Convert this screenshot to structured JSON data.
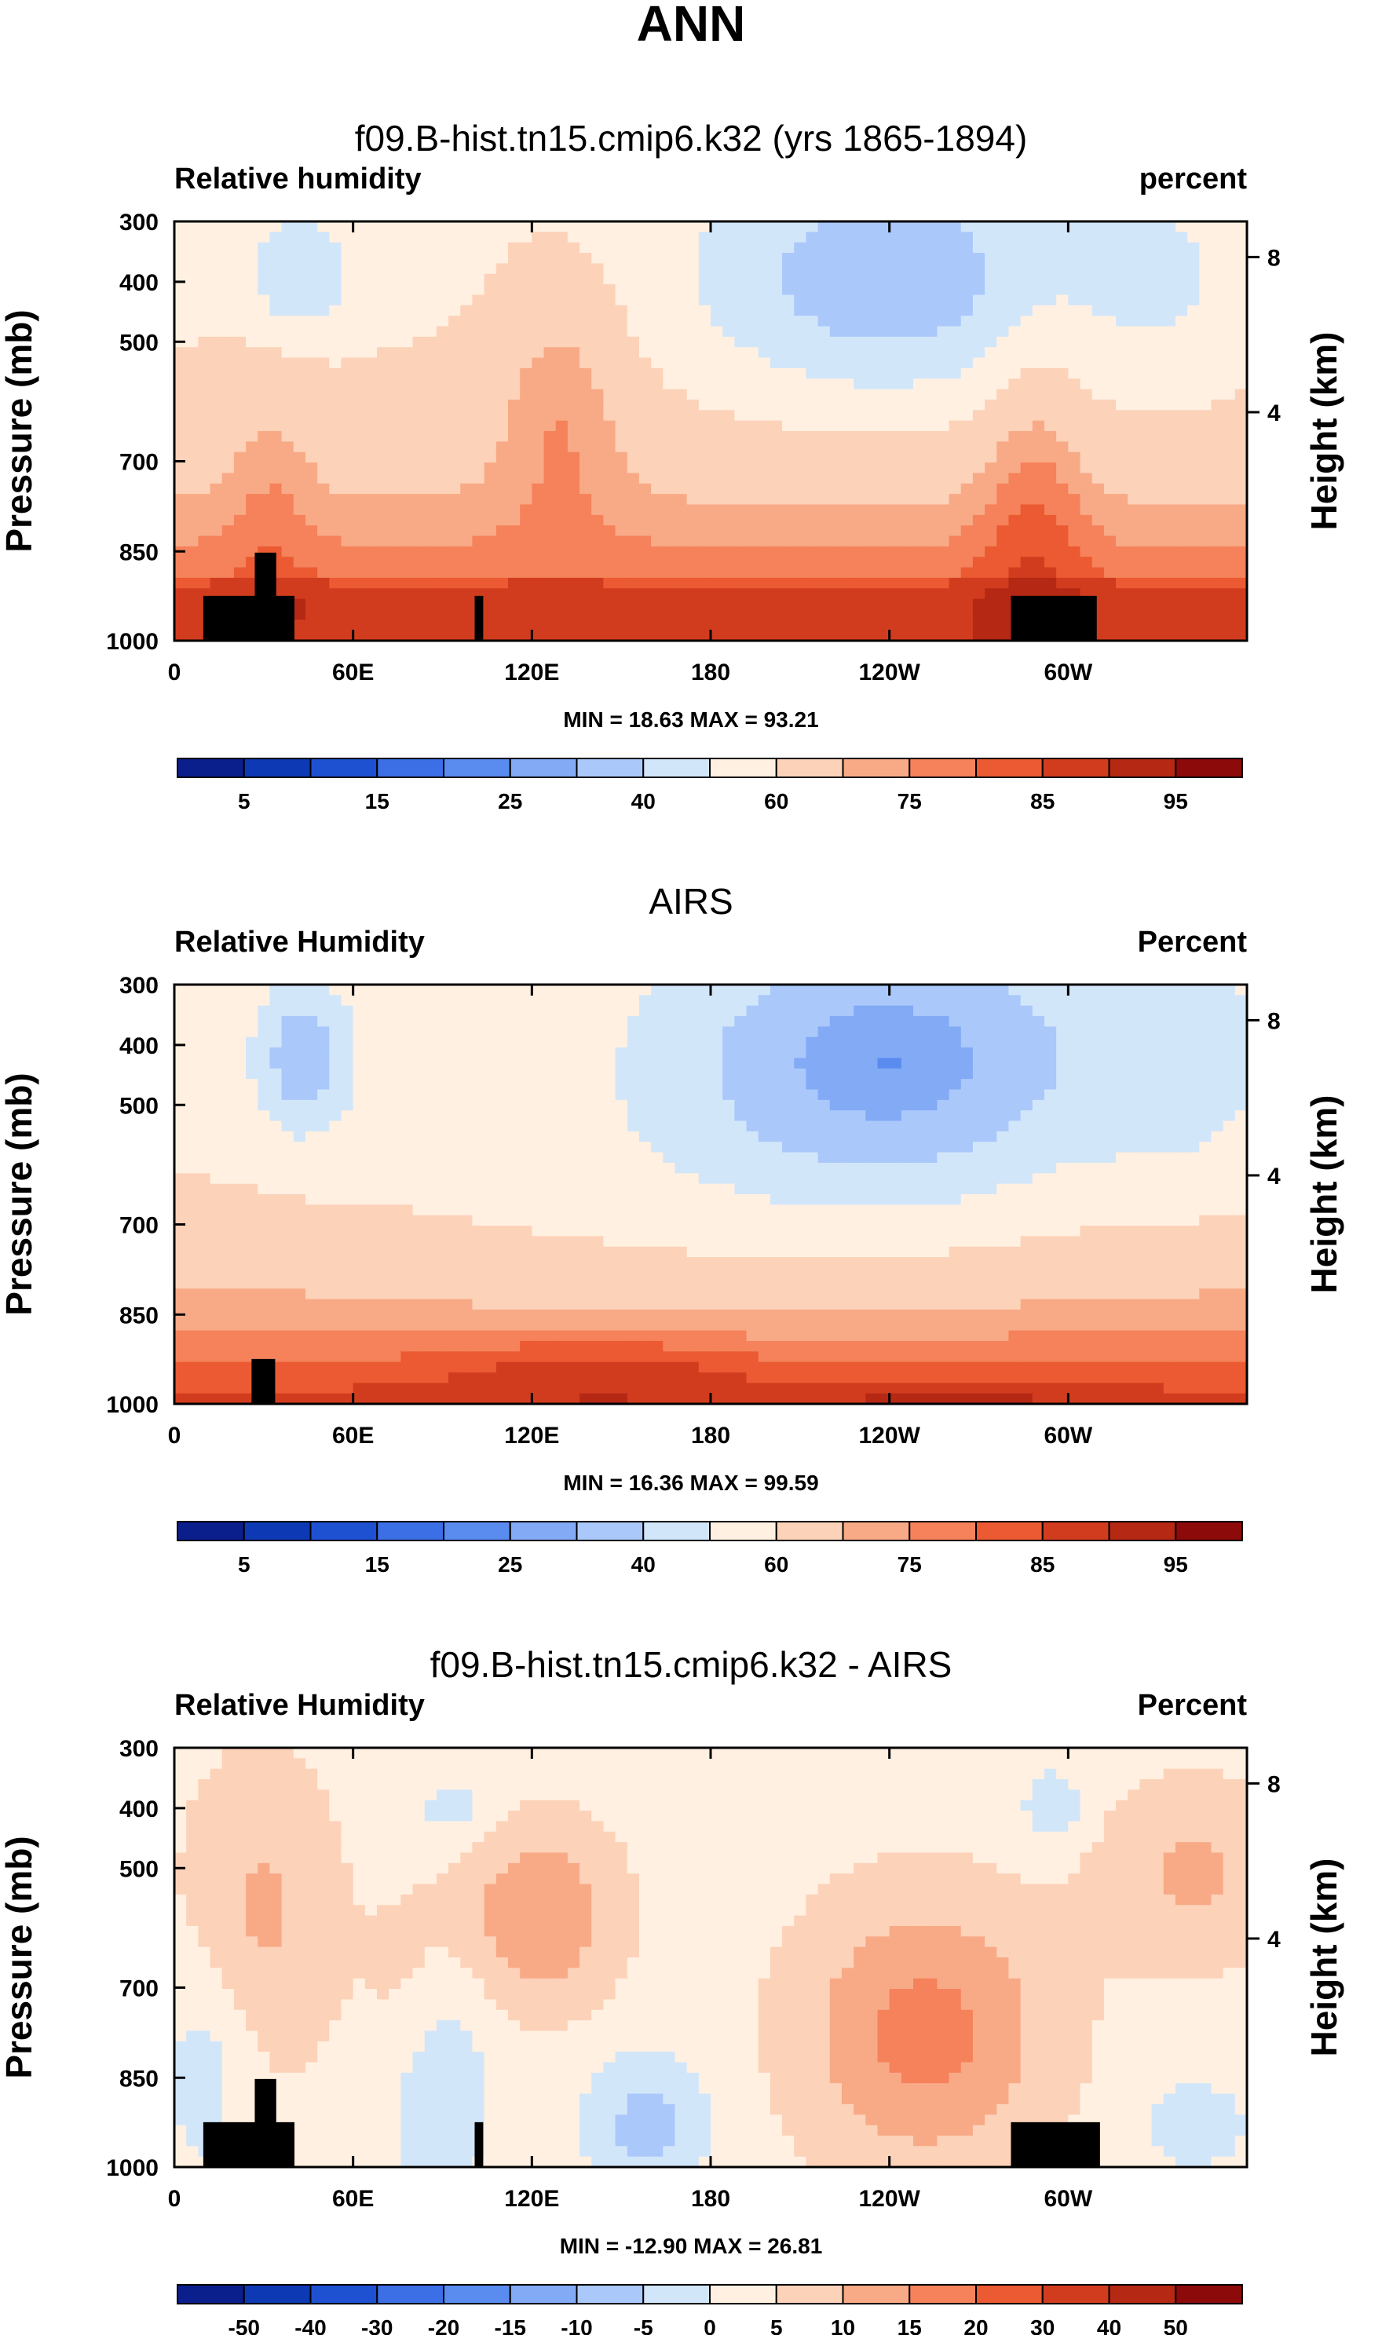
{
  "page_title": "ANN",
  "chart_data": [
    {
      "type": "heatmap",
      "title": "f09.B-hist.tn15.cmip6.k32 (yrs 1865-1894)",
      "left_label": "Relative humidity",
      "right_label": "percent",
      "ylabel": "Pressure (mb)",
      "ylabel_right": "Height (km)",
      "x_ticks": [
        "0",
        "60E",
        "120E",
        "180",
        "120W",
        "60W"
      ],
      "y_ticks": [
        "300",
        "400",
        "500",
        "700",
        "850",
        "1000"
      ],
      "y_ticks_right": [
        "8",
        "4"
      ],
      "stats": "MIN = 18.63  MAX = 93.21",
      "colorbar_labels": [
        "5",
        "15",
        "25",
        "40",
        "60",
        "75",
        "85",
        "95"
      ]
    },
    {
      "type": "heatmap",
      "title": "AIRS",
      "left_label": "Relative Humidity",
      "right_label": "Percent",
      "ylabel": "Pressure (mb)",
      "ylabel_right": "Height (km)",
      "x_ticks": [
        "0",
        "60E",
        "120E",
        "180",
        "120W",
        "60W"
      ],
      "y_ticks": [
        "300",
        "400",
        "500",
        "700",
        "850",
        "1000"
      ],
      "y_ticks_right": [
        "8",
        "4"
      ],
      "stats": "MIN = 16.36  MAX = 99.59",
      "colorbar_labels": [
        "5",
        "15",
        "25",
        "40",
        "60",
        "75",
        "85",
        "95"
      ]
    },
    {
      "type": "heatmap",
      "title": "f09.B-hist.tn15.cmip6.k32 - AIRS",
      "left_label": "Relative Humidity",
      "right_label": "Percent",
      "ylabel": "Pressure (mb)",
      "ylabel_right": "Height (km)",
      "x_ticks": [
        "0",
        "60E",
        "120E",
        "180",
        "120W",
        "60W"
      ],
      "y_ticks": [
        "300",
        "400",
        "500",
        "700",
        "850",
        "1000"
      ],
      "y_ticks_right": [
        "8",
        "4"
      ],
      "stats": "MIN = -12.90  MAX = 26.81",
      "colorbar_labels": [
        "-50",
        "-40",
        "-30",
        "-20",
        "-15",
        "-10",
        "-5",
        "0",
        "5",
        "10",
        "15",
        "20",
        "30",
        "40",
        "50"
      ]
    }
  ],
  "colors": {
    "palette": [
      "#0a1e8c",
      "#0d3ab4",
      "#1e50d2",
      "#3c6ee6",
      "#5a8cf0",
      "#82aaf5",
      "#aac8fa",
      "#d2e6fa",
      "#fff0e1",
      "#fcd2b9",
      "#f8aa87",
      "#f5825a",
      "#eb5a32",
      "#d23c1e",
      "#b42814",
      "#8c0a0a"
    ]
  }
}
